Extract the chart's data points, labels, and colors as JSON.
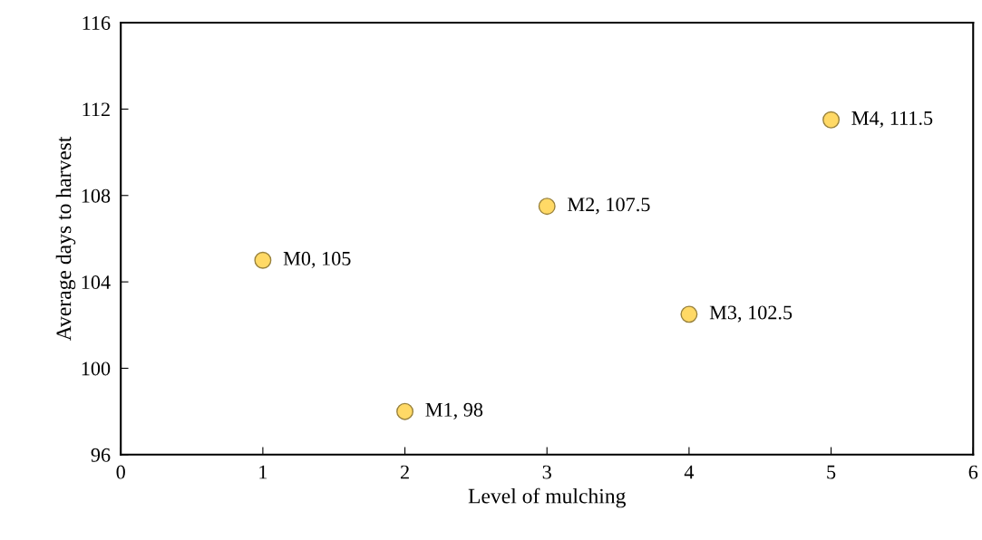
{
  "chart_data": {
    "type": "scatter",
    "xlabel": "Level of mulching",
    "ylabel": "Average days to harvest",
    "x": [
      1,
      2,
      3,
      4,
      5
    ],
    "series": [
      {
        "color": "#ffd966",
        "values": [
          105,
          98,
          107.5,
          102.5,
          111.5
        ],
        "value_labels": [
          "M0, 105",
          "M1, 98",
          "M2, 107.5",
          "M3, 102.5",
          "M4, 111.5"
        ]
      }
    ],
    "xlim": [
      0,
      6
    ],
    "xticks": [
      0,
      1,
      2,
      3,
      4,
      5,
      6
    ],
    "ylim": [
      96,
      116
    ],
    "yticks": [
      96,
      100,
      104,
      108,
      112,
      116
    ],
    "marker": "circle",
    "grid": false
  }
}
